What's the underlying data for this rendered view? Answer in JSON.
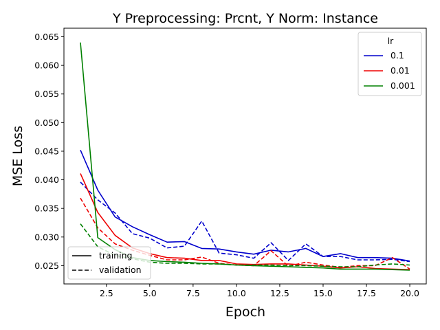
{
  "chart_data": {
    "type": "line",
    "title": "Y Preprocessing: Prcnt, Y Norm: Instance",
    "xlabel": "Epoch",
    "ylabel": "MSE Loss",
    "xlim": [
      0.05,
      20.95
    ],
    "ylim": [
      0.0218,
      0.0665
    ],
    "x_ticks": [
      2.5,
      5.0,
      7.5,
      10.0,
      12.5,
      15.0,
      17.5,
      20.0
    ],
    "x_tick_labels": [
      "2.5",
      "5.0",
      "7.5",
      "10.0",
      "12.5",
      "15.0",
      "17.5",
      "20.0"
    ],
    "y_ticks": [
      0.025,
      0.03,
      0.035,
      0.04,
      0.045,
      0.05,
      0.055,
      0.06,
      0.065
    ],
    "y_tick_labels": [
      "0.025",
      "0.030",
      "0.035",
      "0.040",
      "0.045",
      "0.050",
      "0.055",
      "0.060",
      "0.065"
    ],
    "grid": false,
    "x": [
      1,
      2,
      3,
      4,
      5,
      6,
      7,
      8,
      9,
      10,
      11,
      12,
      13,
      14,
      15,
      16,
      17,
      18,
      19,
      20
    ],
    "legend_lr": {
      "title": "lr",
      "placement": "upper-right",
      "entries": [
        "0.1",
        "0.01",
        "0.001"
      ]
    },
    "legend_style": {
      "placement": "lower-left",
      "entries": [
        "training",
        "validation"
      ]
    },
    "series": [
      {
        "lr": "0.1",
        "split": "training",
        "color": "#0000cc",
        "dash": "solid",
        "values": [
          0.0452,
          0.0382,
          0.0335,
          0.0318,
          0.0304,
          0.0291,
          0.0292,
          0.028,
          0.0279,
          0.0274,
          0.027,
          0.0277,
          0.0274,
          0.028,
          0.0266,
          0.0271,
          0.0264,
          0.0264,
          0.0263,
          0.0258
        ]
      },
      {
        "lr": "0.1",
        "split": "validation",
        "color": "#0000cc",
        "dash": "dashed",
        "values": [
          0.0396,
          0.0365,
          0.0342,
          0.0306,
          0.0298,
          0.0281,
          0.0284,
          0.0328,
          0.0272,
          0.0269,
          0.0263,
          0.029,
          0.0259,
          0.0288,
          0.0266,
          0.0266,
          0.026,
          0.026,
          0.0261,
          0.0257
        ]
      },
      {
        "lr": "0.01",
        "split": "training",
        "color": "#ee0000",
        "dash": "solid",
        "values": [
          0.0411,
          0.0343,
          0.0303,
          0.0281,
          0.0271,
          0.0264,
          0.0263,
          0.0259,
          0.0259,
          0.0253,
          0.0252,
          0.0253,
          0.0253,
          0.0251,
          0.0249,
          0.0246,
          0.0248,
          0.0245,
          0.0244,
          0.0243
        ]
      },
      {
        "lr": "0.01",
        "split": "validation",
        "color": "#ee0000",
        "dash": "dashed",
        "values": [
          0.0368,
          0.0316,
          0.0288,
          0.0277,
          0.0268,
          0.026,
          0.026,
          0.0265,
          0.0254,
          0.0251,
          0.025,
          0.0276,
          0.0249,
          0.0256,
          0.0251,
          0.0247,
          0.025,
          0.025,
          0.0264,
          0.0244
        ]
      },
      {
        "lr": "0.001",
        "split": "training",
        "color": "#008000",
        "dash": "solid",
        "values": [
          0.064,
          0.0299,
          0.0278,
          0.0264,
          0.0259,
          0.0257,
          0.0256,
          0.0254,
          0.0253,
          0.0251,
          0.025,
          0.0249,
          0.0248,
          0.0247,
          0.0246,
          0.0244,
          0.0244,
          0.0244,
          0.0243,
          0.0242
        ]
      },
      {
        "lr": "0.001",
        "split": "validation",
        "color": "#008000",
        "dash": "dashed",
        "values": [
          0.0323,
          0.0283,
          0.0268,
          0.0262,
          0.0256,
          0.0254,
          0.0254,
          0.0253,
          0.0253,
          0.0251,
          0.0251,
          0.0251,
          0.025,
          0.025,
          0.0249,
          0.0248,
          0.0248,
          0.0251,
          0.0253,
          0.0251
        ]
      }
    ]
  }
}
